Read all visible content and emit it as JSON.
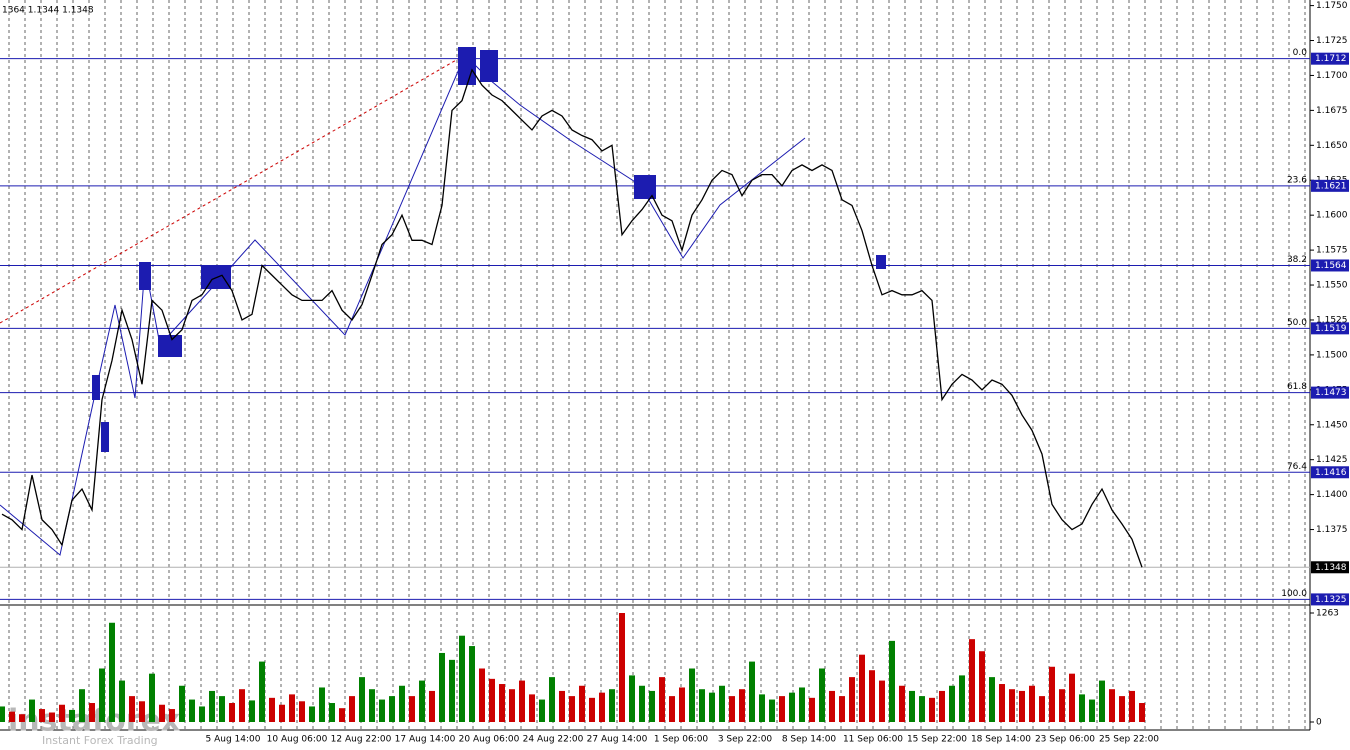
{
  "chart_data": {
    "type": "line",
    "title": "1364 1.1344 1.1348",
    "color": "#000000",
    "values": [
      1.1386,
      1.1382,
      1.1375,
      1.1414,
      1.1382,
      1.1375,
      1.1364,
      1.1396,
      1.1404,
      1.1389,
      1.1468,
      1.1496,
      1.1532,
      1.1511,
      1.1479,
      1.1539,
      1.1532,
      1.1511,
      1.1518,
      1.1539,
      1.1543,
      1.1554,
      1.1557,
      1.1546,
      1.1525,
      1.1529,
      1.1564,
      1.1557,
      1.155,
      1.1543,
      1.1539,
      1.1539,
      1.1539,
      1.1546,
      1.1532,
      1.1525,
      1.1536,
      1.1557,
      1.1579,
      1.1586,
      1.16,
      1.1582,
      1.1582,
      1.1579,
      1.1607,
      1.1675,
      1.1682,
      1.1704,
      1.1693,
      1.1686,
      1.1682,
      1.1675,
      1.1668,
      1.1661,
      1.1671,
      1.1675,
      1.1671,
      1.1661,
      1.1657,
      1.1654,
      1.1646,
      1.165,
      1.1586,
      1.1596,
      1.1604,
      1.1614,
      1.16,
      1.1596,
      1.1575,
      1.16,
      1.1611,
      1.1625,
      1.1632,
      1.1629,
      1.1614,
      1.1625,
      1.1629,
      1.1629,
      1.1621,
      1.1632,
      1.1636,
      1.1632,
      1.1636,
      1.1632,
      1.1611,
      1.1607,
      1.1589,
      1.1564,
      1.1543,
      1.1546,
      1.1543,
      1.1543,
      1.1546,
      1.1539,
      1.1468,
      1.1479,
      1.1486,
      1.1482,
      1.1475,
      1.1482,
      1.1479,
      1.1471,
      1.1457,
      1.1446,
      1.1429,
      1.1393,
      1.1382,
      1.1375,
      1.1379,
      1.1393,
      1.1404,
      1.1389,
      1.1379,
      1.1368,
      1.1348
    ],
    "volume": [
      180,
      120,
      90,
      260,
      150,
      110,
      200,
      140,
      380,
      220,
      620,
      1150,
      480,
      300,
      240,
      560,
      200,
      150,
      420,
      260,
      180,
      360,
      300,
      220,
      380,
      250,
      700,
      280,
      200,
      320,
      240,
      180,
      400,
      220,
      160,
      300,
      520,
      380,
      260,
      300,
      420,
      300,
      480,
      360,
      800,
      720,
      1000,
      880,
      620,
      500,
      440,
      380,
      480,
      320,
      260,
      520,
      360,
      300,
      420,
      280,
      340,
      380,
      1263,
      540,
      420,
      360,
      520,
      300,
      400,
      620,
      380,
      340,
      420,
      300,
      380,
      700,
      320,
      260,
      300,
      340,
      400,
      280,
      620,
      360,
      300,
      520,
      780,
      600,
      480,
      940,
      420,
      360,
      300,
      280,
      360,
      420,
      540,
      960,
      820,
      520,
      440,
      380,
      360,
      420,
      300,
      640,
      380,
      560,
      320,
      260,
      480,
      380,
      300,
      360,
      220
    ],
    "volume_up_color": "#008000",
    "volume_down_color": "#cc0000",
    "ylim": [
      1.1321,
      1.1754
    ],
    "yticks": [
      {
        "value": 1.175,
        "label": "1.1750"
      },
      1.1725,
      {
        "value": 1.17,
        "label": "1.1700"
      },
      1.1675,
      {
        "value": 1.165,
        "label": "1.1650"
      },
      1.1625,
      {
        "value": 1.16,
        "label": "1.1600"
      },
      1.1575,
      {
        "value": 1.155,
        "label": "1.1550"
      },
      1.1525,
      {
        "value": 1.15,
        "label": "1.1500"
      },
      1.1475,
      {
        "value": 1.145,
        "label": "1.1450"
      },
      1.1425,
      {
        "value": 1.14,
        "label": "1.1400"
      },
      1.1375
    ],
    "y2lim": [
      0,
      1263
    ],
    "y2ticks": [
      0,
      1263
    ],
    "x_tick_labels": [
      "5 Aug 14:00",
      "10 Aug 06:00",
      "12 Aug 22:00",
      "17 Aug 14:00",
      "20 Aug 06:00",
      "24 Aug 22:00",
      "27 Aug 14:00",
      "1 Sep 06:00",
      "3 Sep 22:00",
      "8 Sep 14:00",
      "11 Sep 06:00",
      "15 Sep 22:00",
      "18 Sep 14:00",
      "23 Sep 06:00",
      "25 Sep 22:00"
    ],
    "fib_color": "#1c1cb0",
    "fib_levels": [
      {
        "label": "0.0",
        "value": 1.1712
      },
      {
        "label": "23.6",
        "value": 1.1621
      },
      {
        "label": "38.2",
        "value": 1.1564
      },
      {
        "label": "50.0",
        "value": 1.1519
      },
      {
        "label": "61.8",
        "value": 1.1473
      },
      {
        "label": "76.4",
        "value": 1.1416
      },
      {
        "label": "100.0",
        "value": 1.1325
      }
    ],
    "last_price": 1.1348,
    "branding": {
      "name": "instaforex",
      "tagline": "Instant Forex Trading"
    }
  }
}
